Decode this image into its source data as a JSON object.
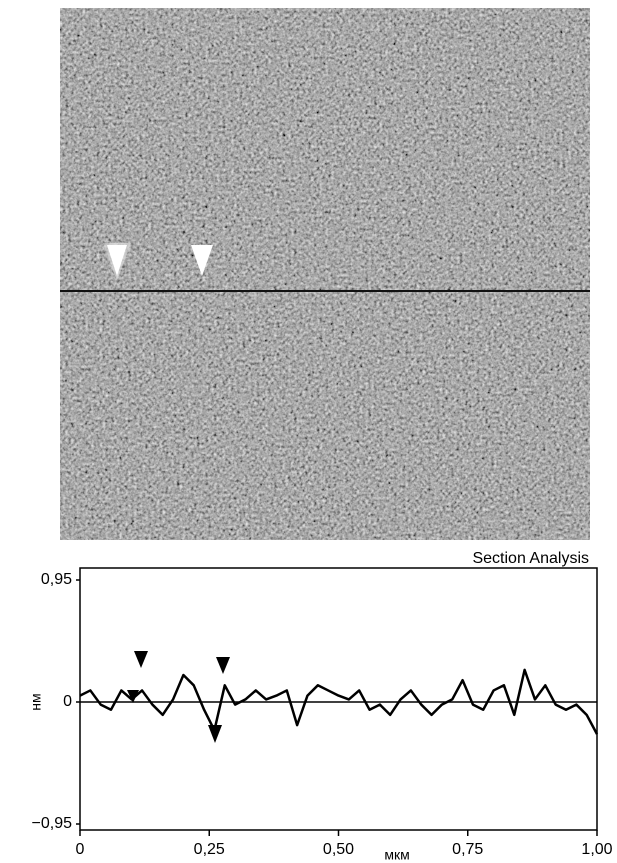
{
  "chart_data": {
    "type": "line",
    "title": "Section Analysis",
    "xlabel": "мкм",
    "ylabel": "нм",
    "x": [
      0,
      0.02,
      0.04,
      0.06,
      0.08,
      0.1,
      0.12,
      0.14,
      0.16,
      0.18,
      0.2,
      0.22,
      0.24,
      0.26,
      0.28,
      0.3,
      0.32,
      0.34,
      0.36,
      0.38,
      0.4,
      0.42,
      0.44,
      0.46,
      0.48,
      0.5,
      0.52,
      0.54,
      0.56,
      0.58,
      0.6,
      0.62,
      0.64,
      0.66,
      0.68,
      0.7,
      0.72,
      0.74,
      0.76,
      0.78,
      0.8,
      0.82,
      0.84,
      0.86,
      0.88,
      0.9,
      0.92,
      0.94,
      0.96,
      0.98,
      1
    ],
    "series": [
      {
        "color": "#000000",
        "values": [
          0.05,
          0.09,
          -0.02,
          -0.06,
          0.09,
          0.02,
          0.09,
          -0.02,
          -0.1,
          0.02,
          0.21,
          0.13,
          -0.06,
          -0.22,
          0.13,
          -0.02,
          0.02,
          0.09,
          0.02,
          0.05,
          0.09,
          -0.18,
          0.05,
          0.13,
          0.09,
          0.05,
          0.02,
          0.09,
          -0.06,
          -0.02,
          -0.1,
          0.02,
          0.09,
          -0.02,
          -0.1,
          -0.02,
          0.02,
          0.17,
          -0.02,
          -0.06,
          0.09,
          0.13,
          -0.1,
          0.25,
          0.02,
          0.13,
          -0.02,
          -0.06,
          -0.02,
          -0.1,
          -0.25
        ]
      }
    ],
    "xlim": [
      0,
      1
    ],
    "ylim": [
      -0.95,
      0.95
    ],
    "xticks": [
      0,
      {
        "value": 0.25,
        "label": "0,25"
      },
      {
        "value": 0.5,
        "label": "0,50"
      },
      {
        "value": 0.75,
        "label": "0,75"
      },
      {
        "value": 1,
        "label": "1,00"
      }
    ],
    "yticks": [
      {
        "value": -0.95,
        "label": "−0,95"
      },
      0,
      {
        "value": 0.95,
        "label": "0,95"
      }
    ],
    "zero_line": true
  }
}
